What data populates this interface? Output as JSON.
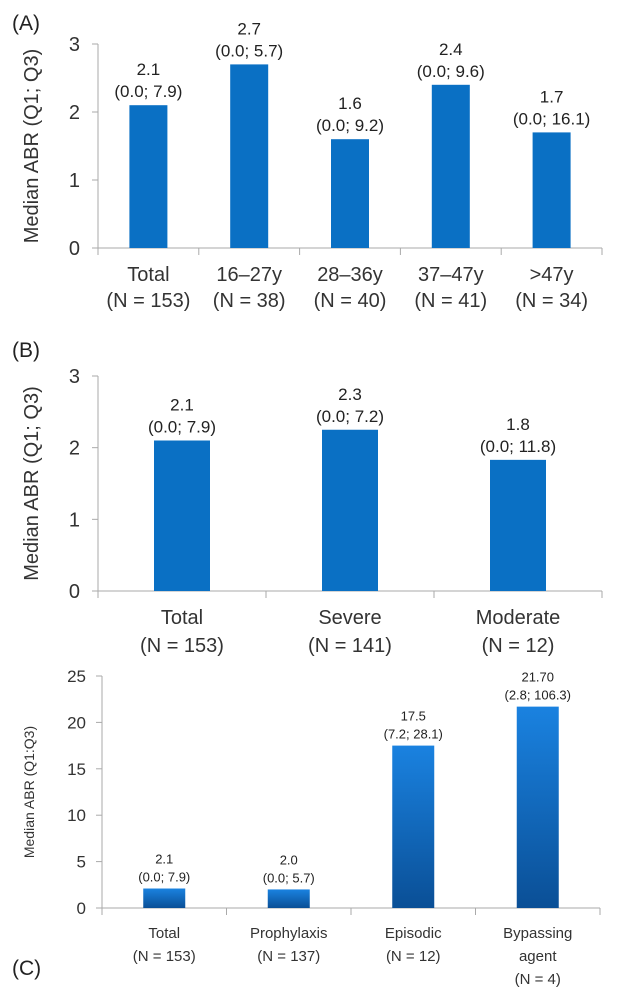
{
  "chart_data": [
    {
      "type": "bar",
      "panel_label": "(A)",
      "ylabel": "Median ABR (Q1; Q3)",
      "ylim": [
        0,
        3
      ],
      "yticks": [
        "0",
        "1",
        "2",
        "3"
      ],
      "color": "#0a70c4",
      "categories": [
        [
          "Total",
          "(N = 153)"
        ],
        [
          "16–27y",
          "(N = 38)"
        ],
        [
          "28–36y",
          "(N = 40)"
        ],
        [
          "37–47y",
          "(N = 41)"
        ],
        [
          ">47y",
          "(N = 34)"
        ]
      ],
      "values": [
        2.1,
        2.7,
        1.6,
        2.4,
        1.7
      ],
      "labels": [
        [
          "2.1",
          "(0.0; 7.9)"
        ],
        [
          "2.7",
          "(0.0; 5.7)"
        ],
        [
          "1.6",
          "(0.0; 9.2)"
        ],
        [
          "2.4",
          "(0.0; 9.6)"
        ],
        [
          "1.7",
          "(0.0; 16.1)"
        ]
      ]
    },
    {
      "type": "bar",
      "panel_label": "(B)",
      "ylabel": "Median ABR (Q1; Q3)",
      "ylim": [
        0,
        3
      ],
      "yticks": [
        "0",
        "1",
        "2",
        "3"
      ],
      "color": "#0a70c4",
      "categories": [
        [
          "Total",
          "(N = 153)"
        ],
        [
          "Severe",
          "(N = 141)"
        ],
        [
          "Moderate",
          "(N = 12)"
        ]
      ],
      "values": [
        2.1,
        2.25,
        1.83
      ],
      "labels": [
        [
          "2.1",
          "(0.0; 7.9)"
        ],
        [
          "2.3",
          "(0.0; 7.2)"
        ],
        [
          "1.8",
          "(0.0; 11.8)"
        ]
      ]
    },
    {
      "type": "bar",
      "panel_label": "(C)",
      "ylabel": "Median ABR (Q1:Q3)",
      "ylim": [
        0,
        25
      ],
      "yticks": [
        "0",
        "5",
        "10",
        "15",
        "20",
        "25"
      ],
      "color": "#1a82e0",
      "color_dark": "#0a4f96",
      "categories": [
        [
          "Total",
          "(N = 153)"
        ],
        [
          "Prophylaxis",
          "(N = 137)"
        ],
        [
          "Episodic",
          "(N = 12)"
        ],
        [
          "Bypassing",
          "agent",
          "(N =  4)"
        ]
      ],
      "values": [
        2.1,
        2.0,
        17.5,
        21.7
      ],
      "labels": [
        [
          "2.1",
          "(0.0; 7.9)"
        ],
        [
          "2.0",
          "(0.0; 5.7)"
        ],
        [
          "17.5",
          "(7.2; 28.1)"
        ],
        [
          "21.70",
          "(2.8; 106.3)"
        ]
      ]
    }
  ]
}
